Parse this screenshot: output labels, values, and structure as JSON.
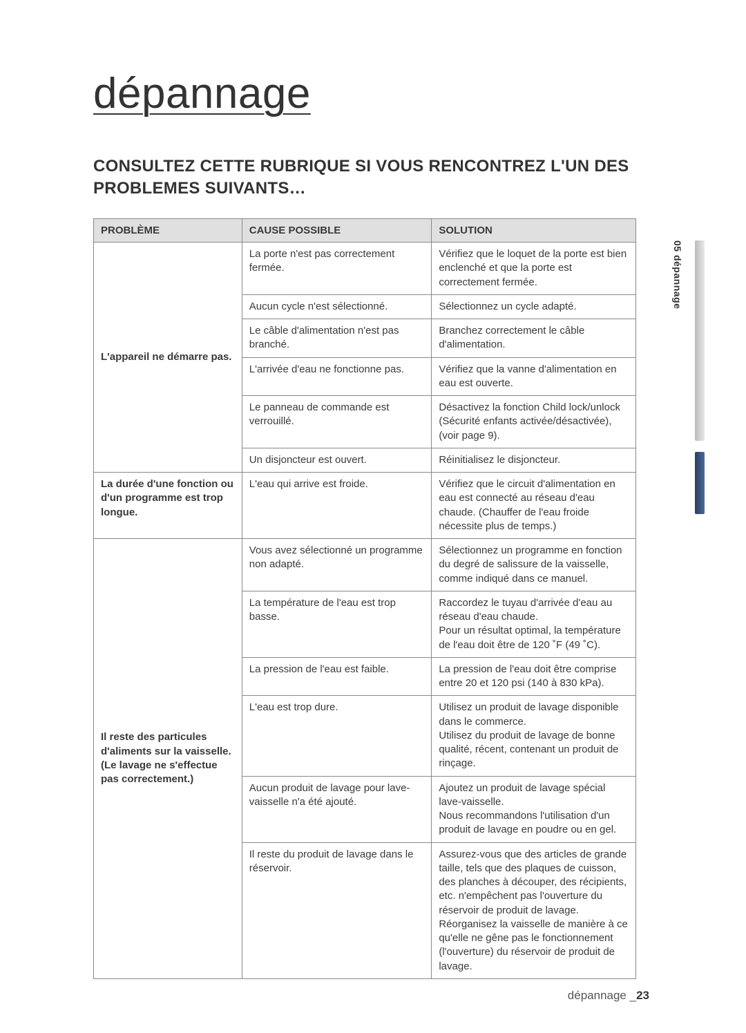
{
  "page": {
    "title": "dépannage",
    "section_heading": "CONSULTEZ CETTE RUBRIQUE SI VOUS RENCONTREZ L'UN DES PROBLEMES SUIVANTS…",
    "footer_label": "dépannage _",
    "footer_page": "23",
    "side_tab": "05 dépannage"
  },
  "table": {
    "headers": {
      "problem": "PROBLÈME",
      "cause": "CAUSE POSSIBLE",
      "solution": "SOLUTION"
    },
    "groups": [
      {
        "problem": "L'appareil ne démarre pas.",
        "rows": [
          {
            "cause": "La porte n'est pas correctement fermée.",
            "solution": "Vérifiez que le loquet de la porte est bien enclenché et que la porte est correctement fermée."
          },
          {
            "cause": "Aucun cycle n'est sélectionné.",
            "solution": "Sélectionnez un cycle adapté."
          },
          {
            "cause": "Le câble d'alimentation n'est pas branché.",
            "solution": "Branchez correctement le câble d'alimentation."
          },
          {
            "cause": "L'arrivée d'eau ne fonctionne pas.",
            "solution": "Vérifiez que la vanne d'alimentation en eau est ouverte."
          },
          {
            "cause": "Le panneau de commande est verrouillé.",
            "solution": "Désactivez la fonction Child lock/unlock (Sécurité enfants activée/désactivée), (voir page 9)."
          },
          {
            "cause": "Un disjoncteur est ouvert.",
            "solution": "Réinitialisez le disjoncteur."
          }
        ]
      },
      {
        "problem": "La durée d'une fonction ou d'un programme est trop longue.",
        "rows": [
          {
            "cause": "L'eau qui arrive est froide.",
            "solution": "Vérifiez que le circuit d'alimentation en eau est connecté au réseau d'eau chaude. (Chauffer de l'eau froide nécessite plus de temps.)"
          }
        ]
      },
      {
        "problem": "Il reste des particules d'aliments sur la vaisselle. (Le lavage ne s'effectue pas correctement.)",
        "rows": [
          {
            "cause": "Vous avez sélectionné un programme non adapté.",
            "solution": "Sélectionnez un programme en fonction du degré de salissure de la vaisselle, comme indiqué dans ce manuel."
          },
          {
            "cause": "La température de l'eau est trop basse.",
            "solution": "Raccordez le tuyau d'arrivée d'eau au réseau d'eau chaude.\nPour un résultat optimal, la température de l'eau doit être de 120 ˚F (49 ˚C)."
          },
          {
            "cause": "La pression de l'eau est faible.",
            "solution": "La pression de l'eau doit être comprise entre 20 et 120 psi (140 à 830 kPa)."
          },
          {
            "cause": "L'eau est trop dure.",
            "solution": "Utilisez un produit de lavage disponible dans le commerce.\nUtilisez du produit de lavage de bonne qualité, récent, contenant un produit de rinçage."
          },
          {
            "cause": "Aucun produit de lavage pour lave-vaisselle n'a été ajouté.",
            "solution": "Ajoutez un produit de lavage spécial lave-vaisselle.\nNous recommandons l'utilisation d'un produit de lavage en poudre ou en gel."
          },
          {
            "cause": "Il reste du produit de lavage dans le réservoir.",
            "solution": "Assurez-vous que des articles de grande taille, tels que des plaques de cuisson, des planches à découper, des récipients, etc. n'empêchent pas l'ouverture du réservoir de produit de lavage.\nRéorganisez la vaisselle de manière à ce qu'elle ne gêne pas le fonctionnement (l'ouverture) du réservoir de produit de lavage."
          }
        ]
      }
    ]
  },
  "colors": {
    "header_bg": "#e0e0e0",
    "border": "#888888",
    "text": "#3a3a3a",
    "side_bar_light": "#cccccc",
    "side_bar_dark": "#2a3f5f"
  }
}
